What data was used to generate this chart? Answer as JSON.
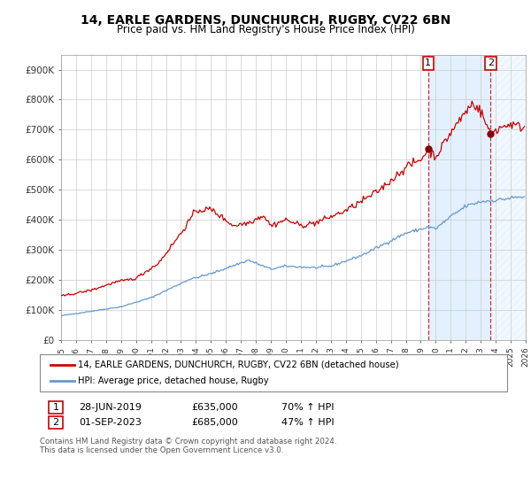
{
  "title_line1": "14, EARLE GARDENS, DUNCHURCH, RUGBY, CV22 6BN",
  "title_line2": "Price paid vs. HM Land Registry's House Price Index (HPI)",
  "legend_label_red": "14, EARLE GARDENS, DUNCHURCH, RUGBY, CV22 6BN (detached house)",
  "legend_label_blue": "HPI: Average price, detached house, Rugby",
  "annotation1": {
    "label": "1",
    "date": "28-JUN-2019",
    "price": "£635,000",
    "pct": "70% ↑ HPI"
  },
  "annotation2": {
    "label": "2",
    "date": "01-SEP-2023",
    "price": "£685,000",
    "pct": "47% ↑ HPI"
  },
  "footer": "Contains HM Land Registry data © Crown copyright and database right 2024.\nThis data is licensed under the Open Government Licence v3.0.",
  "red_color": "#cc0000",
  "blue_color": "#6699cc",
  "bg_highlight": "#ddeeff",
  "dashed_color": "#cc0000",
  "ylim": [
    0,
    950000
  ],
  "yticks": [
    0,
    100000,
    200000,
    300000,
    400000,
    500000,
    600000,
    700000,
    800000,
    900000
  ],
  "ytick_labels": [
    "£0",
    "£100K",
    "£200K",
    "£300K",
    "£400K",
    "£500K",
    "£600K",
    "£700K",
    "£800K",
    "£900K"
  ],
  "xstart_year": 1995,
  "xend_year": 2026,
  "sale1_t": 2019.494,
  "sale2_t": 2023.664,
  "sale1_price": 635000,
  "sale2_price": 685000
}
